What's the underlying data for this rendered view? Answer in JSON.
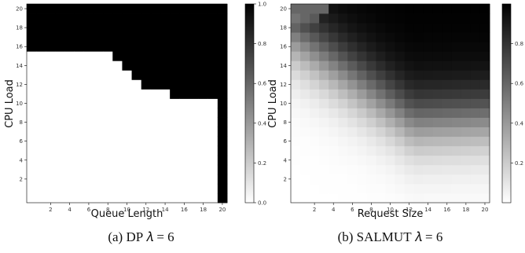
{
  "chart_data": [
    {
      "type": "heatmap",
      "caption": "(a) DP 𝜆 = 6",
      "xlabel": "Queue Length",
      "ylabel": "CPU Load",
      "x_tick_labels": [
        "2",
        "4",
        "6",
        "8",
        "10",
        "12",
        "14",
        "16",
        "18",
        "20"
      ],
      "y_tick_labels": [
        "2",
        "4",
        "6",
        "8",
        "10",
        "12",
        "14",
        "16",
        "18",
        "20"
      ],
      "colorbar_tick_labels": [
        "0.0",
        "0.2",
        "0.4",
        "0.6",
        "0.8",
        "1.0"
      ],
      "colorbar_range": [
        0,
        1
      ],
      "colormap": "white-to-black (Greys)",
      "grid_size": [
        21,
        21
      ],
      "description_of_values": "1.0 (black) above threshold, 0.0 (white) below",
      "threshold_cpu_load_by_queue_length": [
        15.5,
        15.5,
        15.5,
        15.5,
        15.5,
        15.5,
        15.5,
        15.5,
        15.5,
        14.5,
        13.5,
        12.5,
        11.5,
        11.5,
        11.5,
        10.5,
        10.5,
        10.5,
        10.5,
        10.5,
        -0.5
      ]
    },
    {
      "type": "heatmap",
      "caption": "(b) SALMUT 𝜆 = 6",
      "xlabel": "Request Size",
      "ylabel": "CPU Load",
      "x_tick_labels": [
        "2",
        "4",
        "6",
        "8",
        "10",
        "12",
        "14",
        "16",
        "18",
        "20"
      ],
      "y_tick_labels": [
        "2",
        "4",
        "6",
        "8",
        "10",
        "12",
        "14",
        "16",
        "18",
        "20"
      ],
      "colorbar_tick_labels": [
        "0.2",
        "0.4",
        "0.6",
        "0.8"
      ],
      "colorbar_range": [
        0,
        1
      ],
      "colormap": "white-to-black (Greys)",
      "grid_size": [
        21,
        21
      ],
      "description_of_values": "smooth gradient: near 1.0 at high CPU load and larger request size, near 0 at low CPU load"
    }
  ]
}
